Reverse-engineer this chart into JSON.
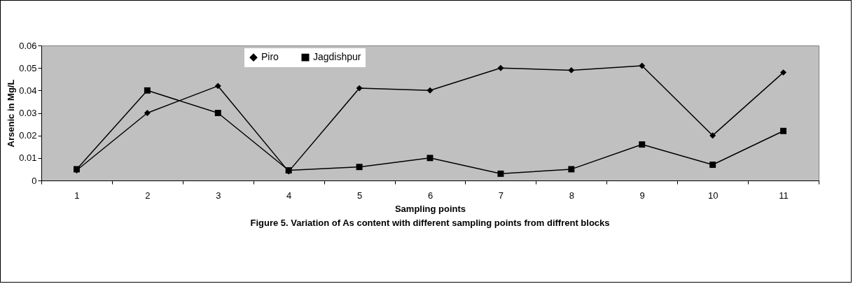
{
  "chart_data": {
    "type": "line",
    "xlabel": "Sampling points",
    "ylabel": "Arsenic in Mg/L",
    "categories": [
      "1",
      "2",
      "3",
      "4",
      "5",
      "6",
      "7",
      "8",
      "9",
      "10",
      "11"
    ],
    "series": [
      {
        "name": "Piro",
        "color": "#000000",
        "marker": "diamond",
        "values": [
          0.0045,
          0.03,
          0.042,
          0.004,
          0.041,
          0.04,
          0.05,
          0.049,
          0.051,
          0.02,
          0.048
        ]
      },
      {
        "name": "Jagdishpur",
        "color": "#000000",
        "marker": "square",
        "values": [
          0.005,
          0.04,
          0.03,
          0.0045,
          0.006,
          0.01,
          0.003,
          0.005,
          0.016,
          0.007,
          0.022
        ]
      }
    ],
    "ylim": [
      0,
      0.06
    ],
    "yticks": [
      0,
      0.01,
      0.02,
      0.03,
      0.04,
      0.05,
      0.06
    ],
    "grid": false,
    "legend": "top",
    "line_style": "solid",
    "annotations": [
      "Figure 5. Variation of As content with different sampling points from  diffrent blocks"
    ]
  }
}
